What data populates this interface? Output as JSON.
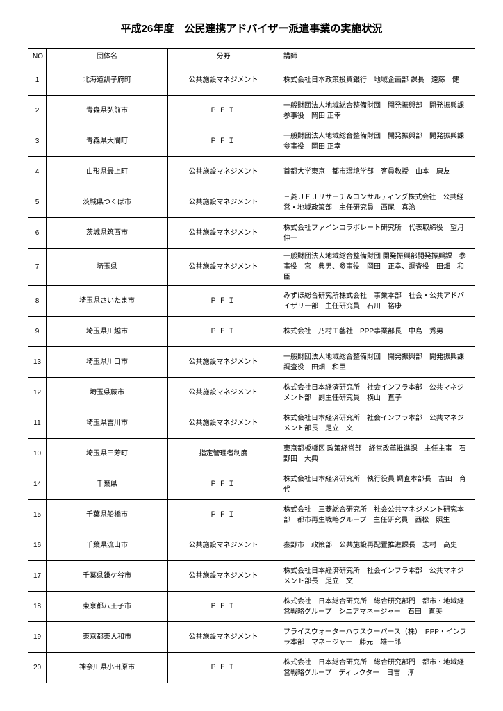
{
  "title": "平成26年度　公民連携アドバイザー派遣事業の実施状況",
  "columns": [
    "NO",
    "団体名",
    "分野",
    "講師"
  ],
  "rows": [
    {
      "no": "1",
      "org": "北海道訓子府町",
      "field": "公共施設マネジメント",
      "field_spaced": false,
      "lecturer": "株式会社日本政策投資銀行　地域企画部 課長　遠藤　健"
    },
    {
      "no": "2",
      "org": "青森県弘前市",
      "field": "ＰＦＩ",
      "field_spaced": true,
      "lecturer": "一般財団法人地域総合整備財団　開発振興部　開発振興課 参事役　岡田 正幸"
    },
    {
      "no": "3",
      "org": "青森県大間町",
      "field": "ＰＦＩ",
      "field_spaced": true,
      "lecturer": "一般財団法人地域総合整備財団　開発振興部　開発振興課 参事役　岡田 正幸"
    },
    {
      "no": "4",
      "org": "山形県最上町",
      "field": "公共施設マネジメント",
      "field_spaced": false,
      "lecturer": "首都大学東京　都市環境学部　客員教授　山本　康友"
    },
    {
      "no": "5",
      "org": "茨城県つくば市",
      "field": "公共施設マネジメント",
      "field_spaced": false,
      "lecturer": "三菱ＵＦＪリサーチ＆コンサルティング株式会社　公共経営・地域政策部　主任研究員　西尾　真治"
    },
    {
      "no": "6",
      "org": "茨城県筑西市",
      "field": "公共施設マネジメント",
      "field_spaced": false,
      "lecturer": "株式会社ファインコラボレート研究所　代表取締役　望月　伸一"
    },
    {
      "no": "7",
      "org": "埼玉県",
      "field": "公共施設マネジメント",
      "field_spaced": false,
      "lecturer": "一般財団法人地域総合整備財団\n開発振興部開発振興課　参事役　宮　典男、参事役　岡田　正幸、調査役　田畑　和臣"
    },
    {
      "no": "8",
      "org": "埼玉県さいたま市",
      "field": "ＰＦＩ",
      "field_spaced": true,
      "lecturer": "みずほ総合研究所株式会社　事業本部　社会・公共アドバイザリー部　主任研究員　石川　裕康"
    },
    {
      "no": "9",
      "org": "埼玉県川越市",
      "field": "ＰＦＩ",
      "field_spaced": true,
      "lecturer": "株式会社　乃村工藝社　PPP事業部長　中島　秀男"
    },
    {
      "no": "13",
      "org": "埼玉県川口市",
      "field": "公共施設マネジメント",
      "field_spaced": false,
      "lecturer": "一般財団法人地域総合整備財団　開発振興部　開発振興課　調査役　田畑　和臣"
    },
    {
      "no": "12",
      "org": "埼玉県蕨市",
      "field": "公共施設マネジメント",
      "field_spaced": false,
      "lecturer": "株式会社日本経済研究所　社会インフラ本部　公共マネジメント部　副主任研究員　横山　直子"
    },
    {
      "no": "11",
      "org": "埼玉県吉川市",
      "field": "公共施設マネジメント",
      "field_spaced": false,
      "lecturer": "株式会社日本経済研究所　社会インフラ本部　公共マネジメント部長　足立　文"
    },
    {
      "no": "10",
      "org": "埼玉県三芳町",
      "field": "指定管理者制度",
      "field_spaced": false,
      "lecturer": "東京都板橋区 政策経営部　経営改革推進課　主任主事　石野田　大典"
    },
    {
      "no": "14",
      "org": "千葉県",
      "field": "ＰＦＩ",
      "field_spaced": true,
      "lecturer": "株式会社日本経済研究所　執行役員 調査本部長　吉田　育代"
    },
    {
      "no": "15",
      "org": "千葉県船橋市",
      "field": "ＰＦＩ",
      "field_spaced": true,
      "lecturer": "株式会社　三菱総合研究所　社会公共マネジメント研究本部　都市再生戦略グループ　主任研究員　西松　照生"
    },
    {
      "no": "16",
      "org": "千葉県流山市",
      "field": "公共施設マネジメント",
      "field_spaced": false,
      "lecturer": "秦野市　政策部　公共施設再配置推進課長　志村　高史"
    },
    {
      "no": "17",
      "org": "千葉県鎌ケ谷市",
      "field": "公共施設マネジメント",
      "field_spaced": false,
      "lecturer": "株式会社日本経済研究所　社会インフラ本部　公共マネジメント部長　足立　文"
    },
    {
      "no": "18",
      "org": "東京都八王子市",
      "field": "ＰＦＩ",
      "field_spaced": true,
      "lecturer": "株式会社　日本総合研究所　総合研究部門　都市・地域経営戦略グループ　シニアマネージャー　石田　直美"
    },
    {
      "no": "19",
      "org": "東京都東大和市",
      "field": "公共施設マネジメント",
      "field_spaced": false,
      "lecturer": "プライスウォーターハウスクーパース（株）　PPP・インフラ本部　マネージャー　藤元　雄一郎"
    },
    {
      "no": "20",
      "org": "神奈川県小田原市",
      "field": "ＰＦＩ",
      "field_spaced": true,
      "lecturer": "株式会社　日本総合研究所　総合研究部門　都市・地域経営戦略グループ　ディレクター　日吉　淳"
    }
  ],
  "style": {
    "background_color": "#ffffff",
    "border_color": "#000000",
    "text_color": "#000000",
    "title_fontsize": 15,
    "cell_fontsize": 10
  }
}
